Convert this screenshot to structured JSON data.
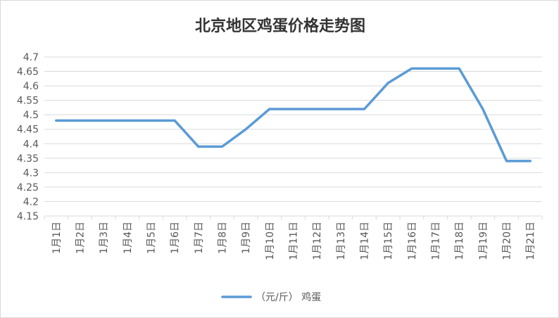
{
  "chart_data": {
    "type": "line",
    "title": "北京地区鸡蛋价格走势图",
    "xlabel": "",
    "ylabel": "",
    "categories": [
      "1月1日",
      "1月2日",
      "1月3日",
      "1月4日",
      "1月5日",
      "1月6日",
      "1月7日",
      "1月8日",
      "1月9日",
      "1月10日",
      "1月11日",
      "1月12日",
      "1月13日",
      "1月14日",
      "1月15日",
      "1月16日",
      "1月17日",
      "1月18日",
      "1月19日",
      "1月20日",
      "1月21日"
    ],
    "series": [
      {
        "name": "（元/斤） 鸡蛋",
        "color": "#5b9bd5",
        "values": [
          4.48,
          4.48,
          4.48,
          4.48,
          4.48,
          4.48,
          4.39,
          4.39,
          4.45,
          4.52,
          4.52,
          4.52,
          4.52,
          4.52,
          4.61,
          4.66,
          4.66,
          4.66,
          4.52,
          4.34,
          4.34
        ]
      }
    ],
    "ylim": [
      4.15,
      4.7
    ],
    "yticks": [
      "4.7",
      "4.65",
      "4.6",
      "4.55",
      "4.5",
      "4.45",
      "4.4",
      "4.35",
      "4.3",
      "4.25",
      "4.2",
      "4.15"
    ],
    "grid": true,
    "legend_position": "bottom"
  }
}
